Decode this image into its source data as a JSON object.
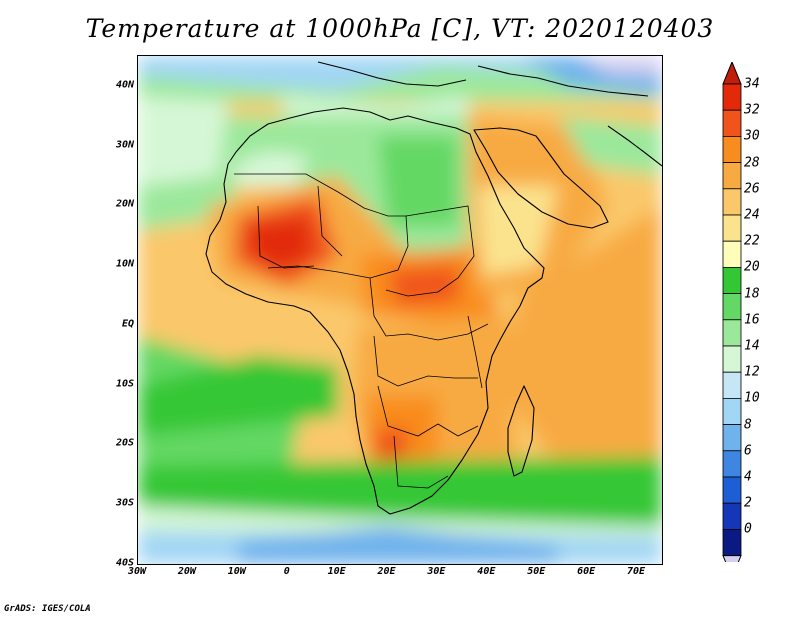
{
  "title": "Temperature at 1000hPa [C], VT: 2020120403",
  "credit": "GrADS: IGES/COLA",
  "map": {
    "lon_range": [
      -30,
      75
    ],
    "lat_range": [
      -40,
      45
    ],
    "x_ticks": [
      "30W",
      "20W",
      "10W",
      "0",
      "10E",
      "20E",
      "30E",
      "40E",
      "50E",
      "60E",
      "70E"
    ],
    "y_ticks": [
      "40N",
      "30N",
      "20N",
      "10N",
      "EQ",
      "10S",
      "20S",
      "30S",
      "40S"
    ],
    "land_labels": []
  },
  "colorbar": {
    "labels": [
      "34",
      "32",
      "30",
      "28",
      "26",
      "24",
      "22",
      "20",
      "18",
      "16",
      "14",
      "12",
      "10",
      "8",
      "6",
      "4",
      "2",
      "0"
    ],
    "colors": [
      "#e22a0a",
      "#f0541c",
      "#f98c1e",
      "#f8aa42",
      "#fac86a",
      "#fbe38e",
      "#fffdb9",
      "#34c734",
      "#64d864",
      "#9be89b",
      "#d6f7d6",
      "#c6e6f6",
      "#a1d6f4",
      "#6fb2ec",
      "#3f86e2",
      "#1e5ed5",
      "#1636b8",
      "#0a1a82"
    ],
    "top_color": "#c11e0a",
    "bottom_color": "#d6d0f0"
  }
}
